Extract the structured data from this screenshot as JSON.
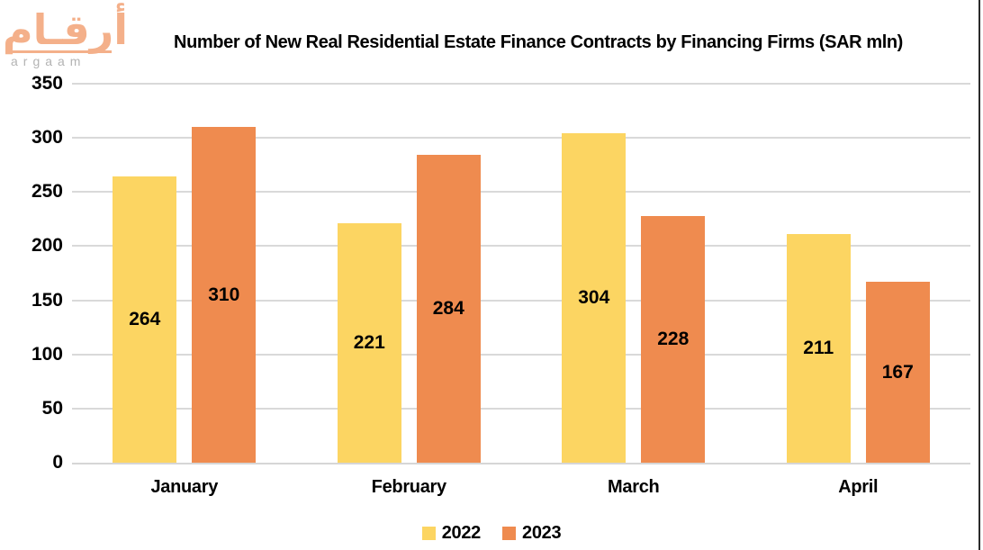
{
  "logo": {
    "arabic": "أرقـام",
    "latin": "argaam"
  },
  "title": "Number of New Real Residential Estate Finance Contracts by Financing Firms (SAR mln)",
  "chart_data": {
    "type": "bar",
    "title": "Number of New Real Residential Estate Finance Contracts by Financing Firms (SAR mln)",
    "categories": [
      "January",
      "February",
      "March",
      "April"
    ],
    "series": [
      {
        "name": "2022",
        "color": "#FCD562",
        "values": [
          264,
          221,
          304,
          211
        ]
      },
      {
        "name": "2023",
        "color": "#EF8B4F",
        "values": [
          310,
          284,
          228,
          167
        ]
      }
    ],
    "xlabel": "",
    "ylabel": "",
    "ylim": [
      0,
      350
    ],
    "yticks": [
      0,
      50,
      100,
      150,
      200,
      250,
      300,
      350
    ],
    "grid": true,
    "gridline_color": "#D9D9D9",
    "legend_position": "bottom",
    "bar_value_labels_position": "inside-center"
  }
}
